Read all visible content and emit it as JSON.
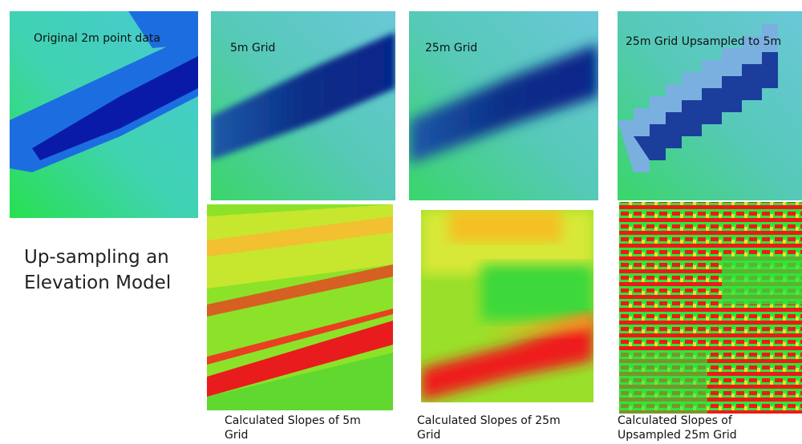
{
  "title": "Up-sampling an Elevation Model",
  "elevation_panels": [
    {
      "label": "Original 2m point data"
    },
    {
      "label": "5m Grid"
    },
    {
      "label": "25m Grid"
    },
    {
      "label": "25m Grid Upsampled to 5m"
    }
  ],
  "slope_panels": [
    {
      "caption": "Calculated Slopes of 5m Grid"
    },
    {
      "caption": "Calculated Slopes of 25m Grid"
    },
    {
      "caption": "Calculated Slopes of Upsampled 25m Grid"
    }
  ]
}
